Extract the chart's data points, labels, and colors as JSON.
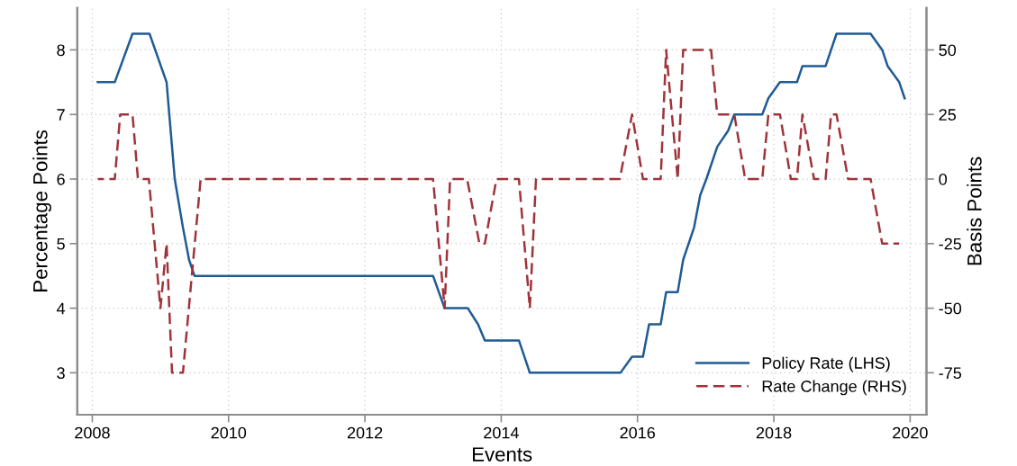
{
  "chart_data": {
    "type": "line",
    "xlabel": "Events",
    "ylabel": "Percentage Points",
    "y2label": "Basis Points",
    "xlim": [
      2007.78,
      2020.24
    ],
    "xticks": [
      2008,
      2010,
      2012,
      2014,
      2016,
      2018,
      2020
    ],
    "ylim": [
      2.35,
      8.65
    ],
    "yticks": [
      3,
      4,
      5,
      6,
      7,
      8
    ],
    "y2lim": [
      -91.25,
      66.25
    ],
    "y2ticks": [
      -75,
      -50,
      -25,
      0,
      25,
      50
    ],
    "grid": true,
    "legend": "bottom right",
    "marker": "none",
    "series": [
      {
        "name": "Policy Rate (LHS)",
        "color": "#1f5b94",
        "line_style": "solid",
        "axis": "y",
        "x": [
          2008.08,
          2008.33,
          2008.59,
          2008.84,
          2009.09,
          2009.21,
          2009.33,
          2009.42,
          2009.5,
          2013.0,
          2013.17,
          2013.51,
          2013.66,
          2013.76,
          2014.26,
          2014.42,
          2015.75,
          2015.92,
          2016.08,
          2016.17,
          2016.34,
          2016.42,
          2016.59,
          2016.67,
          2016.83,
          2016.92,
          2017.01,
          2017.17,
          2017.33,
          2017.42,
          2017.83,
          2017.92,
          2018.09,
          2018.34,
          2018.42,
          2018.76,
          2018.92,
          2019.42,
          2019.59,
          2019.67,
          2019.84,
          2019.92
        ],
        "values": [
          7.5,
          7.5,
          8.25,
          8.25,
          7.5,
          6.0,
          5.25,
          4.75,
          4.5,
          4.5,
          4.0,
          4.0,
          3.75,
          3.5,
          3.5,
          3.0,
          3.0,
          3.25,
          3.25,
          3.75,
          3.75,
          4.25,
          4.25,
          4.75,
          5.25,
          5.75,
          6.0,
          6.5,
          6.75,
          7.0,
          7.0,
          7.25,
          7.5,
          7.5,
          7.75,
          7.75,
          8.25,
          8.25,
          8.0,
          7.75,
          7.5,
          7.25
        ]
      },
      {
        "name": "Rate Change (RHS)",
        "color": "#a0333a",
        "line_style": "dashed",
        "axis": "y2",
        "x": [
          2008.08,
          2008.33,
          2008.41,
          2008.59,
          2008.67,
          2008.83,
          2009.0,
          2009.09,
          2009.17,
          2009.33,
          2009.59,
          2013.0,
          2013.17,
          2013.25,
          2013.5,
          2013.68,
          2013.76,
          2013.93,
          2014.26,
          2014.42,
          2014.51,
          2015.74,
          2015.92,
          2016.08,
          2016.34,
          2016.42,
          2016.59,
          2016.67,
          2017.08,
          2017.17,
          2017.42,
          2017.58,
          2017.83,
          2017.92,
          2018.09,
          2018.25,
          2018.34,
          2018.42,
          2018.59,
          2018.76,
          2018.84,
          2018.92,
          2019.09,
          2019.42,
          2019.59,
          2019.84
        ],
        "values": [
          0,
          0,
          25,
          25,
          0,
          0,
          -50,
          -25,
          -75,
          -75,
          0,
          0,
          -50,
          0,
          0,
          -25,
          -25,
          0,
          0,
          -50,
          0,
          0,
          25,
          0,
          0,
          50,
          0,
          50,
          50,
          25,
          25,
          0,
          0,
          25,
          25,
          0,
          0,
          25,
          0,
          0,
          25,
          25,
          0,
          0,
          -25,
          -25
        ]
      }
    ]
  }
}
